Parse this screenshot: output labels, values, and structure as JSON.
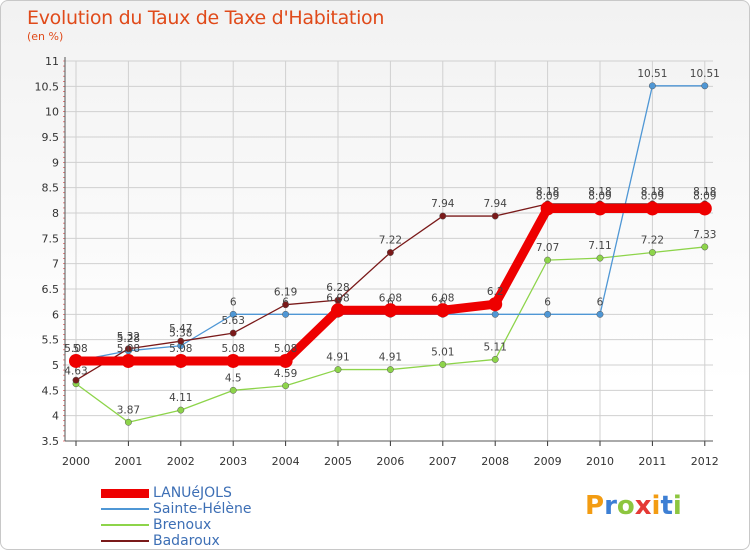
{
  "title": "Evolution du Taux de Taxe d'Habitation",
  "subtitle": "(en %)",
  "logo": {
    "letters": [
      "P",
      "r",
      "o",
      "x",
      "i",
      "t",
      "i"
    ],
    "colors": [
      "#f39c12",
      "#3d7fd4",
      "#8dc63f",
      "#e53935",
      "#f39c12",
      "#3d7fd4",
      "#8dc63f"
    ]
  },
  "chart_data": {
    "type": "line",
    "x": [
      "2000",
      "2001",
      "2002",
      "2003",
      "2004",
      "2005",
      "2006",
      "2007",
      "2008",
      "2009",
      "2010",
      "2011",
      "2012"
    ],
    "ylim": [
      3.5,
      11
    ],
    "yticks": [
      "3.5",
      "4",
      "4.5",
      "5",
      "5.5",
      "6",
      "6.5",
      "7",
      "7.5",
      "8",
      "8.5",
      "9",
      "9.5",
      "10",
      "10.5",
      "11"
    ],
    "grid": true,
    "legend_position": "bottom-left",
    "series": [
      {
        "name": "LANUéJOLS",
        "color": "#ee0000",
        "values": [
          5.08,
          5.08,
          5.08,
          5.08,
          5.08,
          6.08,
          6.08,
          6.08,
          6.2,
          8.09,
          8.09,
          8.09,
          8.09
        ],
        "labels": [
          "5.08",
          "5.08",
          "5.08",
          "5.08",
          "5.08",
          "6.08",
          "6.08",
          "6.08",
          "6.2",
          "8.09",
          "8.09",
          "8.09",
          "8.09"
        ]
      },
      {
        "name": "Sainte-Hélène",
        "color": "#4f97d5",
        "values": [
          5.08,
          5.28,
          5.38,
          6,
          6,
          6,
          6,
          6,
          6,
          6,
          6,
          10.51,
          10.51
        ],
        "labels": [
          "5",
          "5.28",
          "5.38",
          "6",
          "6",
          "6",
          "6",
          "6",
          "6",
          "6",
          "6",
          "10.51",
          "10.51"
        ]
      },
      {
        "name": "Brenoux",
        "color": "#8dd44a",
        "values": [
          4.63,
          3.87,
          4.11,
          4.5,
          4.59,
          4.91,
          4.91,
          5.01,
          5.11,
          7.07,
          7.11,
          7.22,
          7.33
        ],
        "labels": [
          "4.63",
          "3.87",
          "4.11",
          "4.5",
          "4.59",
          "4.91",
          "4.91",
          "5.01",
          "5.11",
          "7.07",
          "7.11",
          "7.22",
          "7.33"
        ]
      },
      {
        "name": "Badaroux",
        "color": "#7a1a1a",
        "values": [
          4.7,
          5.32,
          5.47,
          5.63,
          6.19,
          6.28,
          7.22,
          7.94,
          7.94,
          8.18,
          8.18,
          8.18,
          8.18
        ],
        "labels": [
          "",
          "5.32",
          "5.47",
          "5.63",
          "6.19",
          "6.28",
          "7.22",
          "7.94",
          "7.94",
          "8.18",
          "8.18",
          "8.18",
          "8.18"
        ]
      }
    ]
  }
}
